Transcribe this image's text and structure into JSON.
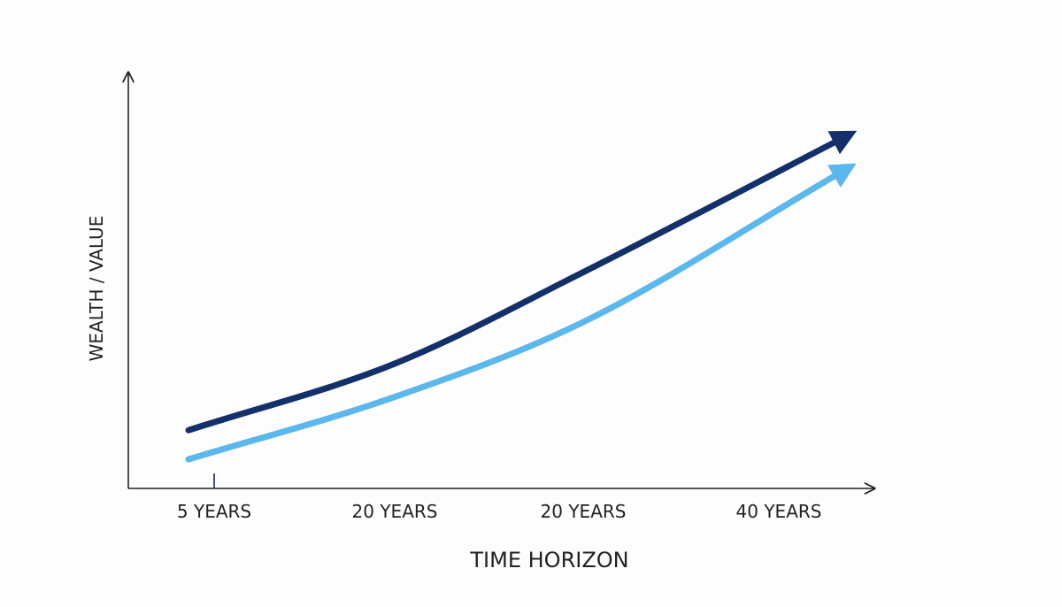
{
  "chart_data": {
    "type": "line",
    "title": "",
    "xlabel": "TIME HORIZON",
    "ylabel": "WEALTH / VALUE",
    "grid": false,
    "legend": "none",
    "categories": [
      "5 YEARS",
      "20 YEARS",
      "20 YEARS",
      "40 YEARS"
    ],
    "series": [
      {
        "color": "#14306b",
        "values": [
          0.14,
          0.3,
          0.52,
          0.84
        ]
      },
      {
        "color": "#5bb7ec",
        "values": [
          0.07,
          0.22,
          0.4,
          0.76
        ]
      }
    ],
    "ylim": [
      0,
      1
    ],
    "marker_category": "5 YEARS"
  }
}
